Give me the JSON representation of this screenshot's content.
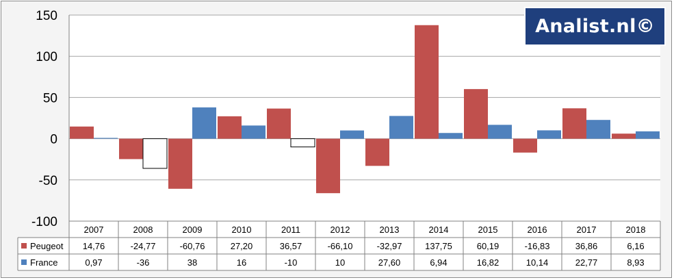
{
  "chart_data": {
    "type": "bar",
    "categories": [
      "2007",
      "2008",
      "2009",
      "2010",
      "2011",
      "2012",
      "2013",
      "2014",
      "2015",
      "2016",
      "2017",
      "2018"
    ],
    "series": [
      {
        "name": "Peugeot",
        "color": "#c0504d",
        "values": [
          14.76,
          -24.77,
          -60.76,
          27.2,
          36.57,
          -66.1,
          -32.97,
          137.75,
          60.19,
          -16.83,
          36.86,
          6.16
        ],
        "labels": [
          "14,76",
          "-24,77",
          "-60,76",
          "27,20",
          "36,57",
          "-66,10",
          "-32,97",
          "137,75",
          "60,19",
          "-16,83",
          "36,86",
          "6,16"
        ]
      },
      {
        "name": "France",
        "color": "#4f81bd",
        "values": [
          0.97,
          -36,
          38,
          16,
          -10,
          10,
          27.6,
          6.94,
          16.82,
          10.14,
          22.77,
          8.93
        ],
        "labels": [
          "0,97",
          "-36",
          "38",
          "16",
          "-10",
          "10",
          "27,60",
          "6,94",
          "16,82",
          "10,14",
          "22,77",
          "8,93"
        ]
      }
    ],
    "negative_fill_note_color": "#ffffff",
    "ylim": [
      -100,
      150
    ],
    "yticks": [
      "150",
      "100",
      "50",
      "0",
      "-50",
      "-100"
    ],
    "ytick_values": [
      150,
      100,
      50,
      0,
      -50,
      -100
    ],
    "grid": true,
    "data_table": true
  },
  "watermark": {
    "text": "Analist.nl©"
  }
}
